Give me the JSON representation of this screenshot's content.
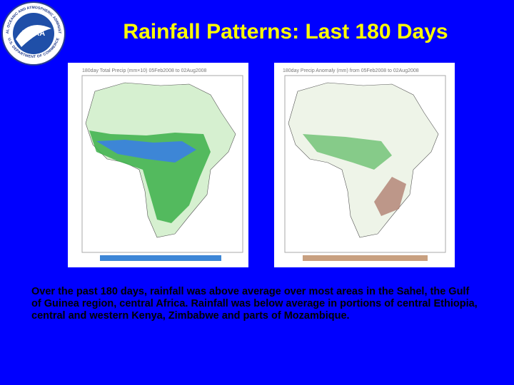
{
  "slide": {
    "title": "Rainfall Patterns: Last 180 Days",
    "logo": {
      "name": "NOAA",
      "ring_top": "NATIONAL OCEANIC AND ATMOSPHERIC ADMINISTRATION",
      "ring_bottom": "U.S. DEPARTMENT OF COMMERCE"
    },
    "maps": [
      {
        "title": "180day Total Precip (mm×10) 05Feb2008 to 02Aug2008"
      },
      {
        "title": "180day Precip Anomaly (mm) from 05Feb2008 to 02Aug2008"
      }
    ],
    "text": "Over the past 180 days, rainfall was above average over most areas in the Sahel, the Gulf of Guinea region, central Africa. Rainfall was below average in portions of central Ethiopia, central and western Kenya, Zimbabwe and parts of Mozambique."
  }
}
